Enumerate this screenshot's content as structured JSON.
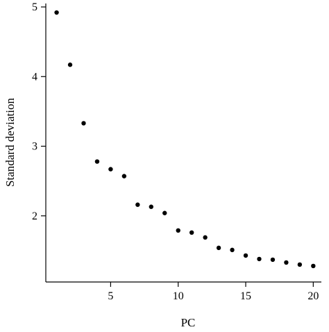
{
  "chart_data": {
    "type": "scatter",
    "title": "",
    "xlabel": "PC",
    "ylabel": "Standard deviation",
    "xlim": [
      0.2,
      20.6
    ],
    "ylim": [
      1.05,
      5.05
    ],
    "x_ticks": [
      5,
      10,
      15,
      20
    ],
    "y_ticks": [
      2,
      3,
      4,
      5
    ],
    "grid": false,
    "legend": "none",
    "point_color": "#000000",
    "series": [
      {
        "x": [
          1,
          2,
          3,
          4,
          5,
          6,
          7,
          8,
          9,
          10,
          11,
          12,
          13,
          14,
          15,
          16,
          17,
          18,
          19,
          20
        ],
        "y": [
          4.92,
          4.17,
          3.33,
          2.78,
          2.67,
          2.57,
          2.16,
          2.13,
          2.04,
          1.79,
          1.76,
          1.69,
          1.54,
          1.51,
          1.43,
          1.38,
          1.37,
          1.33,
          1.3,
          1.28
        ]
      }
    ]
  }
}
